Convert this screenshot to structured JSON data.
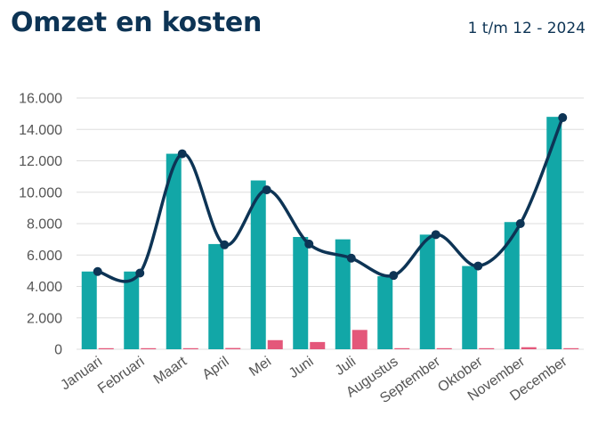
{
  "header": {
    "title": "Omzet en kosten",
    "period": "1 t/m 12 - 2024"
  },
  "colors": {
    "title": "#0d3455",
    "omzet_bar": "#12a7a7",
    "kosten_bar": "#e4577a",
    "line": "#0d3455",
    "grid": "#dddddd"
  },
  "chart_data": {
    "type": "bar",
    "categories": [
      "Januari",
      "Februari",
      "Maart",
      "April",
      "Mei",
      "Juni",
      "Juli",
      "Augustus",
      "September",
      "Oktober",
      "November",
      "December"
    ],
    "y_tick_labels": [
      "0",
      "2.000",
      "4.000",
      "6.000",
      "8.000",
      "10.000",
      "12.000",
      "14.000",
      "16.000"
    ],
    "ylim": [
      0,
      16000
    ],
    "grid": true,
    "series": [
      {
        "type": "bar",
        "values": [
          4950,
          4950,
          12450,
          6700,
          10750,
          7150,
          7000,
          4650,
          7300,
          5300,
          8100,
          14800
        ]
      },
      {
        "type": "bar",
        "values": [
          0,
          60,
          0,
          80,
          580,
          460,
          1230,
          30,
          60,
          40,
          130,
          0
        ]
      },
      {
        "type": "line",
        "values": [
          4950,
          4850,
          12450,
          6650,
          10150,
          6700,
          5800,
          4700,
          7300,
          5300,
          8000,
          14750
        ]
      }
    ]
  }
}
